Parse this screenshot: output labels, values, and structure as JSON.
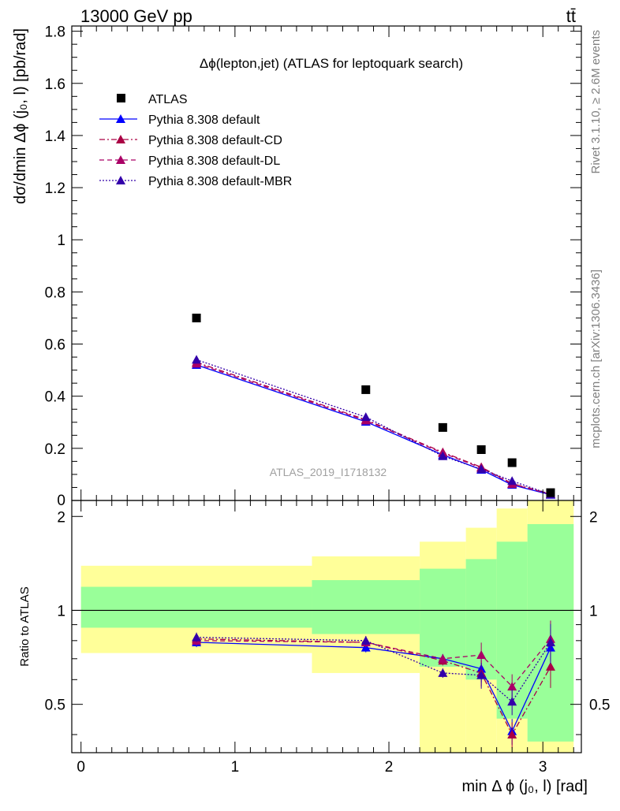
{
  "header": {
    "energy_label": "13000 GeV pp",
    "process_label": "tt̄",
    "plot_title": "Δϕ(lepton,jet) (ATLAS for leptoquark search)",
    "analysis_id": "ATLAS_2019_I1718132",
    "rivet_label": "Rivet 3.1.10, ≥ 2.6M events",
    "mcplots_label": "mcplots.cern.ch [arXiv:1306.3436]"
  },
  "colors": {
    "data": "#000000",
    "default": "#0000ff",
    "cd": "#aa0044",
    "dl": "#aa0066",
    "mbr": "#3300aa",
    "band_inner": "#99ff99",
    "band_outer": "#ffff99"
  },
  "chart_data": [
    {
      "type": "scatter",
      "ylabel": "dσ/dmin Δϕ (j₀, l) [pb/rad]",
      "xlim": [
        -0.06,
        3.25
      ],
      "ylim": [
        0,
        1.82
      ],
      "yticks": [
        0.2,
        0.4,
        0.6,
        0.8,
        1,
        1.2,
        1.4,
        1.6,
        1.8
      ],
      "ytick_labels": [
        "0.2",
        "0.4",
        "0.6",
        "0.8",
        "1",
        "1.2",
        "1.4",
        "1.6",
        "1.8"
      ],
      "ymin_label": "0",
      "legend_position": "top-left",
      "x": [
        0.75,
        1.85,
        2.35,
        2.6,
        2.8,
        3.05
      ],
      "series": [
        {
          "name": "ATLAS",
          "style": "marker",
          "values": [
            0.7,
            0.425,
            0.28,
            0.195,
            0.145,
            0.03
          ]
        },
        {
          "name": "Pythia 8.308 default",
          "style": "solid",
          "values": [
            0.52,
            0.302,
            0.175,
            0.118,
            0.06,
            0.022
          ]
        },
        {
          "name": "Pythia 8.308 default-CD",
          "style": "dashdot",
          "values": [
            0.53,
            0.31,
            0.185,
            0.128,
            0.065,
            0.025
          ]
        },
        {
          "name": "Pythia 8.308 default-DL",
          "style": "dashed",
          "values": [
            0.525,
            0.307,
            0.182,
            0.125,
            0.063,
            0.024
          ]
        },
        {
          "name": "Pythia 8.308 default-MBR",
          "style": "dotted",
          "values": [
            0.54,
            0.32,
            0.17,
            0.12,
            0.075,
            0.023
          ]
        }
      ]
    },
    {
      "type": "line",
      "ylabel": "Ratio to ATLAS",
      "xlabel": "min Δ ϕ (j₀, l) [rad]",
      "xlim": [
        -0.06,
        3.25
      ],
      "ylim": [
        0.35,
        2.25
      ],
      "yticks": [
        0.5,
        1,
        2
      ],
      "ytick_labels": [
        "0.5",
        "1",
        "2"
      ],
      "xticks": [
        0,
        1,
        2,
        3
      ],
      "xtick_labels": [
        "0",
        "1",
        "2",
        "3"
      ],
      "reference": 1,
      "bin_edges": [
        0,
        1.5,
        2.2,
        2.5,
        2.7,
        2.9,
        3.2
      ],
      "band_inner": {
        "lo": [
          0.88,
          0.84,
          0.66,
          0.6,
          0.45,
          0.38
        ],
        "hi": [
          1.19,
          1.25,
          1.36,
          1.46,
          1.66,
          1.89
        ]
      },
      "band_outer": {
        "lo": [
          0.73,
          0.63,
          0.3,
          0.2,
          0.25,
          0.3
        ],
        "hi": [
          1.39,
          1.49,
          1.66,
          1.84,
          2.12,
          2.4
        ]
      },
      "x": [
        0.75,
        1.85,
        2.35,
        2.6,
        2.8,
        3.05
      ],
      "series": [
        {
          "name": "Pythia 8.308 default",
          "style": "solid",
          "values": [
            0.79,
            0.76,
            0.7,
            0.65,
            0.41,
            0.76
          ]
        },
        {
          "name": "Pythia 8.308 default-CD",
          "style": "dashdot",
          "values": [
            0.81,
            0.79,
            0.69,
            0.63,
            0.4,
            0.66
          ]
        },
        {
          "name": "Pythia 8.308 default-DL",
          "style": "dashed",
          "values": [
            0.8,
            0.79,
            0.7,
            0.72,
            0.57,
            0.81
          ]
        },
        {
          "name": "Pythia 8.308 default-MBR",
          "style": "dotted",
          "values": [
            0.82,
            0.8,
            0.63,
            0.62,
            0.51,
            0.79
          ]
        }
      ]
    }
  ]
}
